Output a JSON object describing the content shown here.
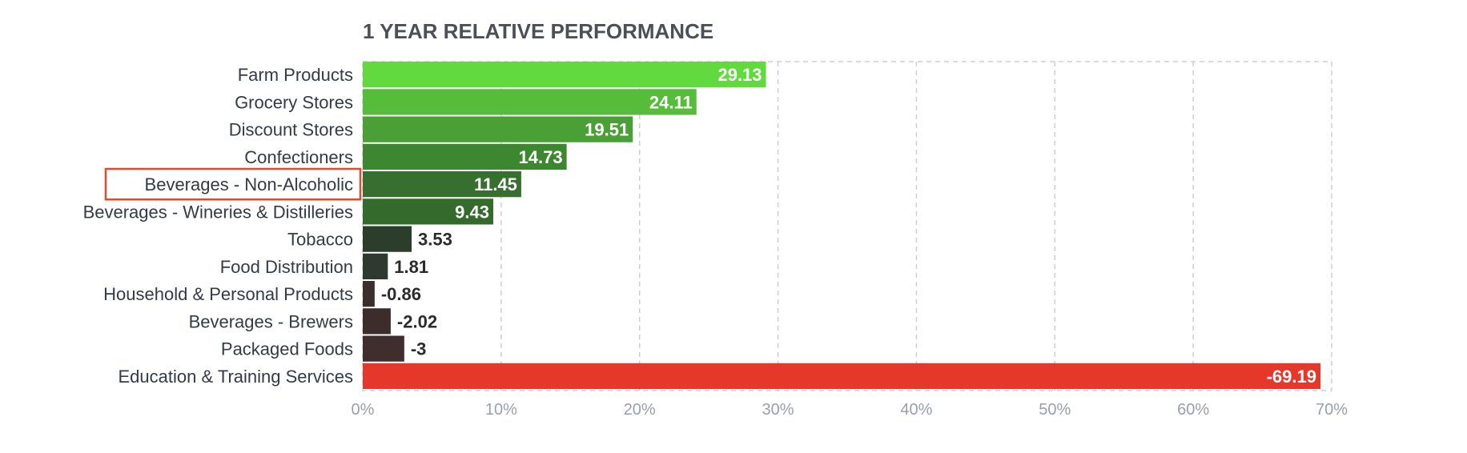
{
  "chart_data": {
    "type": "bar",
    "orientation": "horizontal",
    "title": "1 YEAR RELATIVE PERFORMANCE",
    "categories": [
      "Farm Products",
      "Grocery Stores",
      "Discount Stores",
      "Confectioners",
      "Beverages - Non-Alcoholic",
      "Beverages - Wineries & Distilleries",
      "Tobacco",
      "Food Distribution",
      "Household & Personal Products",
      "Beverages - Brewers",
      "Packaged Foods",
      "Education & Training Services"
    ],
    "values": [
      29.13,
      24.11,
      19.51,
      14.73,
      11.45,
      9.43,
      3.53,
      1.81,
      -0.86,
      -2.02,
      -3,
      -69.19
    ],
    "value_labels": [
      "29.13",
      "24.11",
      "19.51",
      "14.73",
      "11.45",
      "9.43",
      "3.53",
      "1.81",
      "-0.86",
      "-2.02",
      "-3",
      "-69.19"
    ],
    "bar_colors": [
      "#63d940",
      "#56bd3a",
      "#4aa036",
      "#3e8731",
      "#366f2f",
      "#346b2c",
      "#2d3d2c",
      "#2e3a2d",
      "#3b2e2e",
      "#3d2c2c",
      "#402d2d",
      "#e5372a"
    ],
    "bars_measure": "absolute value",
    "xaxis": {
      "ticks": [
        "0%",
        "10%",
        "20%",
        "30%",
        "40%",
        "50%",
        "60%",
        "70%"
      ],
      "range": [
        0,
        70
      ]
    },
    "grid": "vertical dashed",
    "highlighted_category": "Beverages - Non-Alcoholic",
    "highlight_color": "#e04a2f"
  }
}
